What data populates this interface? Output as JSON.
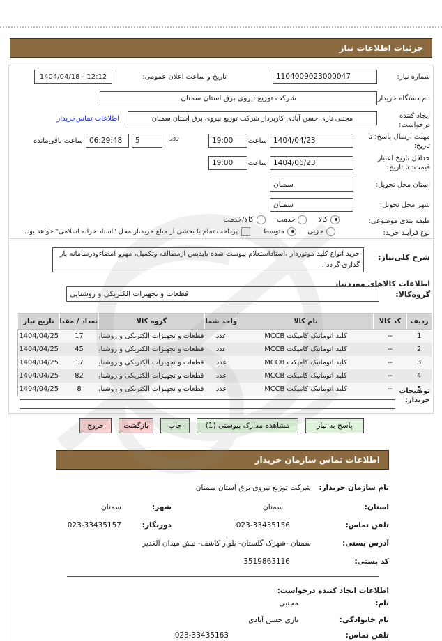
{
  "colors": {
    "accent_brown": "#8C6B40",
    "button_green": "#DFF2DB",
    "button_red": "#F7CFCF",
    "link_blue": "#2233CC"
  },
  "header": {
    "title": "جزئیات اطلاعات نیاز"
  },
  "form": {
    "need_number": {
      "label": "شماره نیاز:",
      "value": "1104009023000047"
    },
    "announce_datetime": {
      "label": "تاریخ و ساعت اعلان عمومی:",
      "value": "1404/04/18 - 12:12"
    },
    "buyer_org": {
      "label": "نام دستگاه خریدار:",
      "value": "شرکت توزیع نیروی برق استان سمنان"
    },
    "request_creator": {
      "label": "ایجاد کننده درخواست:",
      "value": "مجتبی نازی حسن آبادی کارپرداز شرکت توزیع نیروی برق استان سمنان",
      "contact_link": "اطلاعات تماس‌خریدار"
    },
    "reply_deadline": {
      "label": "مهلت ارسال پاسخ: تا تاریخ:",
      "date": "1404/04/23",
      "hour_label": "ساعت",
      "hour": "19:00",
      "day_label": "روز",
      "days": "5",
      "remaining": "06:29:48",
      "remaining_label": "ساعت باقی‌مانده"
    },
    "price_validity": {
      "label": "حداقل تاریخ اعتبار قیمت: تا تاریخ:",
      "date": "1404/06/23",
      "hour_label": "ساعت",
      "hour": "19:00"
    },
    "delivery_province": {
      "label": "استان محل تحویل:",
      "value": "سمنان"
    },
    "delivery_city": {
      "label": "شهر محل تحویل:",
      "value": "سمنان"
    },
    "subject_class": {
      "label": "طبقه بندی موضوعی:",
      "options": [
        "کالا",
        "خدمت",
        "کالا/خدمت"
      ],
      "selected": "کالا"
    },
    "process_type": {
      "label": "نوع فرآیند خرید:",
      "options": [
        "جزیی",
        "متوسط"
      ],
      "selected": "متوسط",
      "checkbox_label": "پرداخت تمام یا بخشی از مبلغ خرید،از محل \"اسناد خزانه اسلامی\" خواهد بود.",
      "checkbox_checked": false
    }
  },
  "need_desc": {
    "label": "شرح کلی‌نیاز:",
    "value": "خرید انواع کلید موتوردار ،اسناداستعلام پیوست شده بایدپس ازمطالعه وتکمیل، مهرو امضاءودرسامانه بار گذاری گردد ."
  },
  "goods": {
    "heading": "اطلاعات کالاهای موردنیاز",
    "group_label": "گروه‌کالا:",
    "group_value": "قطعات و تجهیزات الکتریکی و روشنایی",
    "table": {
      "headers": [
        "ردیف",
        "کد کالا",
        "نام کالا",
        "واحد شمارش",
        "گروه کالا",
        "تعداد / مقدار",
        "تاریخ نیاز"
      ],
      "rows": [
        [
          "1",
          "--",
          "کلید اتوماتیک کامپکت MCCB",
          "عدد",
          "قطعات و تجهیزات الکتریکی و روشنایی",
          "17",
          "1404/04/25"
        ],
        [
          "2",
          "--",
          "کلید اتوماتیک کامپکت MCCB",
          "عدد",
          "قطعات و تجهیزات الکتریکی و روشنایی",
          "45",
          "1404/04/25"
        ],
        [
          "3",
          "--",
          "کلید اتوماتیک کامپکت MCCB",
          "عدد",
          "قطعات و تجهیزات الکتریکی و روشنایی",
          "17",
          "1404/04/25"
        ],
        [
          "4",
          "--",
          "کلید اتوماتیک کامپکت MCCB",
          "عدد",
          "قطعات و تجهیزات الکتریکی و روشنایی",
          "82",
          "1404/04/25"
        ],
        [
          "5",
          "--",
          "کلید اتوماتیک کامپکت MCCB",
          "عدد",
          "قطعات و تجهیزات الکتریکی و روشنایی",
          "8",
          "1404/04/25"
        ]
      ]
    },
    "buyer_notes": {
      "label": "توضیحات خریدار:",
      "value": ""
    }
  },
  "buttons": [
    {
      "label": "پاسخ به نیاز"
    },
    {
      "label": "مشاهده مدارک پیوستی (1)"
    },
    {
      "label": "چاپ"
    },
    {
      "label": "بازگشت"
    },
    {
      "label": "خروج"
    }
  ],
  "contact": {
    "title": "اطلاعات تماس سازمان خریدار",
    "org": {
      "label": "نام سازمان خریدار:",
      "value": "شرکت توزیع نیروی برق استان سمنان"
    },
    "province": {
      "label": "استان:",
      "value": "سمنان"
    },
    "city": {
      "label": "شهر:",
      "value": "سمنان"
    },
    "phone": {
      "label": "تلفن تماس:",
      "value": "023-33435156"
    },
    "fax": {
      "label": "دورنگار:",
      "value": "023-33435157"
    },
    "address": {
      "label": "آدرس پستی:",
      "value": "سمنان -شهرک گلستان- بلوار کاشف- نبش میدان الغدیر"
    },
    "postal_code": {
      "label": "کد پستی:",
      "value": "3519863116"
    }
  },
  "creator": {
    "heading": "اطلاعات ایجاد کننده درخواست:",
    "first_name": {
      "label": "نام:",
      "value": "مجتبی"
    },
    "last_name": {
      "label": "نام خانوادگی:",
      "value": "نازی حسن آبادی"
    },
    "phone": {
      "label": "تلفن تماس:",
      "value": "023-33435163"
    }
  }
}
